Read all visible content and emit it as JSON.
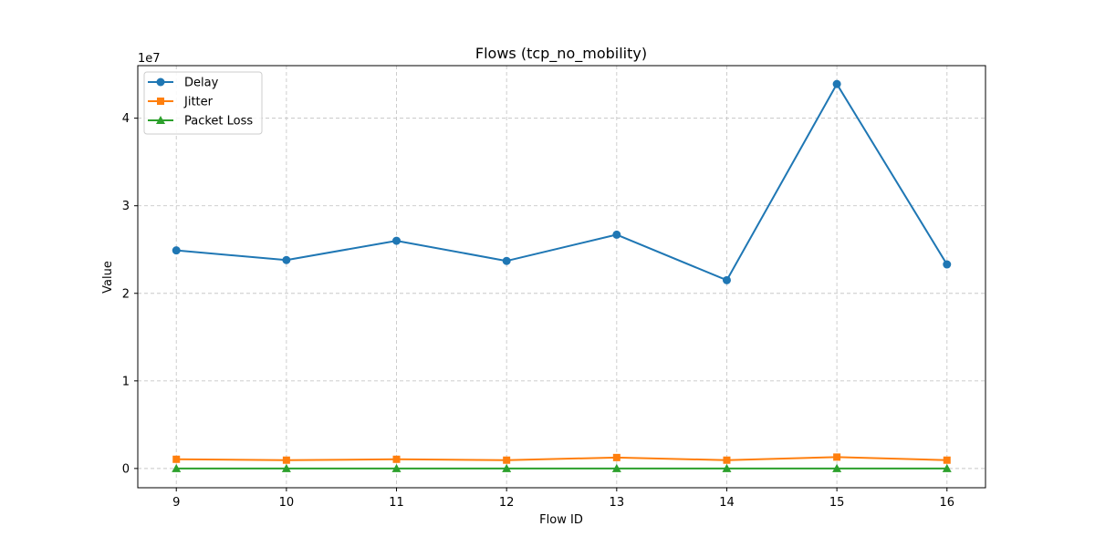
{
  "chart_data": {
    "type": "line",
    "title": "Flows (tcp_no_mobility)",
    "xlabel": "Flow ID",
    "ylabel": "Value",
    "offset_label": "1e7",
    "x": [
      9,
      10,
      11,
      12,
      13,
      14,
      15,
      16
    ],
    "x_ticks": [
      "9",
      "10",
      "11",
      "12",
      "13",
      "14",
      "15",
      "16"
    ],
    "y_ticks": [
      0,
      1,
      2,
      3,
      4
    ],
    "y_tick_labels": [
      "0",
      "1",
      "2",
      "3",
      "4"
    ],
    "ylim": [
      -2200000,
      46000000
    ],
    "xlim": [
      8.65,
      16.35
    ],
    "grid": true,
    "legend_position": "upper-left",
    "series": [
      {
        "name": "Delay",
        "color": "#1f77b4",
        "marker": "circle",
        "values": [
          24900000,
          23800000,
          26000000,
          23700000,
          26700000,
          21500000,
          43900000,
          23300000
        ]
      },
      {
        "name": "Jitter",
        "color": "#ff7f0e",
        "marker": "square",
        "values": [
          1050000,
          950000,
          1050000,
          950000,
          1250000,
          950000,
          1300000,
          950000
        ]
      },
      {
        "name": "Packet Loss",
        "color": "#2ca02c",
        "marker": "triangle",
        "values": [
          0,
          0,
          0,
          0,
          0,
          0,
          0,
          0
        ]
      }
    ]
  }
}
